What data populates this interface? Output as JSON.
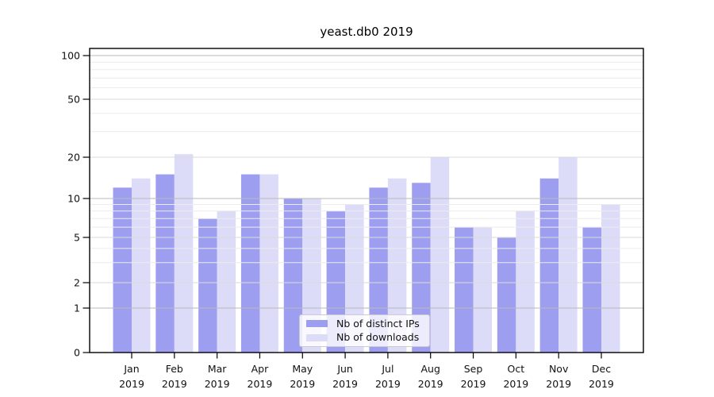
{
  "chart_data": {
    "type": "bar",
    "title": "yeast.db0 2019",
    "categories": [
      "Jan",
      "Feb",
      "Mar",
      "Apr",
      "May",
      "Jun",
      "Jul",
      "Aug",
      "Sep",
      "Oct",
      "Nov",
      "Dec"
    ],
    "x_axis": {
      "year": "2019"
    },
    "series": [
      {
        "name": "Nb of distinct IPs",
        "color": "#9e9ef0",
        "values": [
          12,
          15,
          7,
          15,
          10,
          8,
          12,
          13,
          6,
          5,
          14,
          6
        ]
      },
      {
        "name": "Nb of downloads",
        "color": "#dcdcf8",
        "values": [
          14,
          21,
          8,
          15,
          10,
          9,
          14,
          20,
          6,
          8,
          20,
          9
        ]
      }
    ],
    "y_axis": {
      "scale": "log-like",
      "ylim": [
        0,
        100
      ],
      "ticks": [
        0,
        1,
        2,
        5,
        10,
        20,
        50,
        100
      ],
      "major": [
        1,
        10,
        100
      ],
      "minor_unlabeled": [
        3,
        4,
        6,
        7,
        8,
        9,
        30,
        40,
        60,
        70,
        80,
        90
      ]
    },
    "legend": {
      "position": "lower-center"
    },
    "grid": "on"
  }
}
